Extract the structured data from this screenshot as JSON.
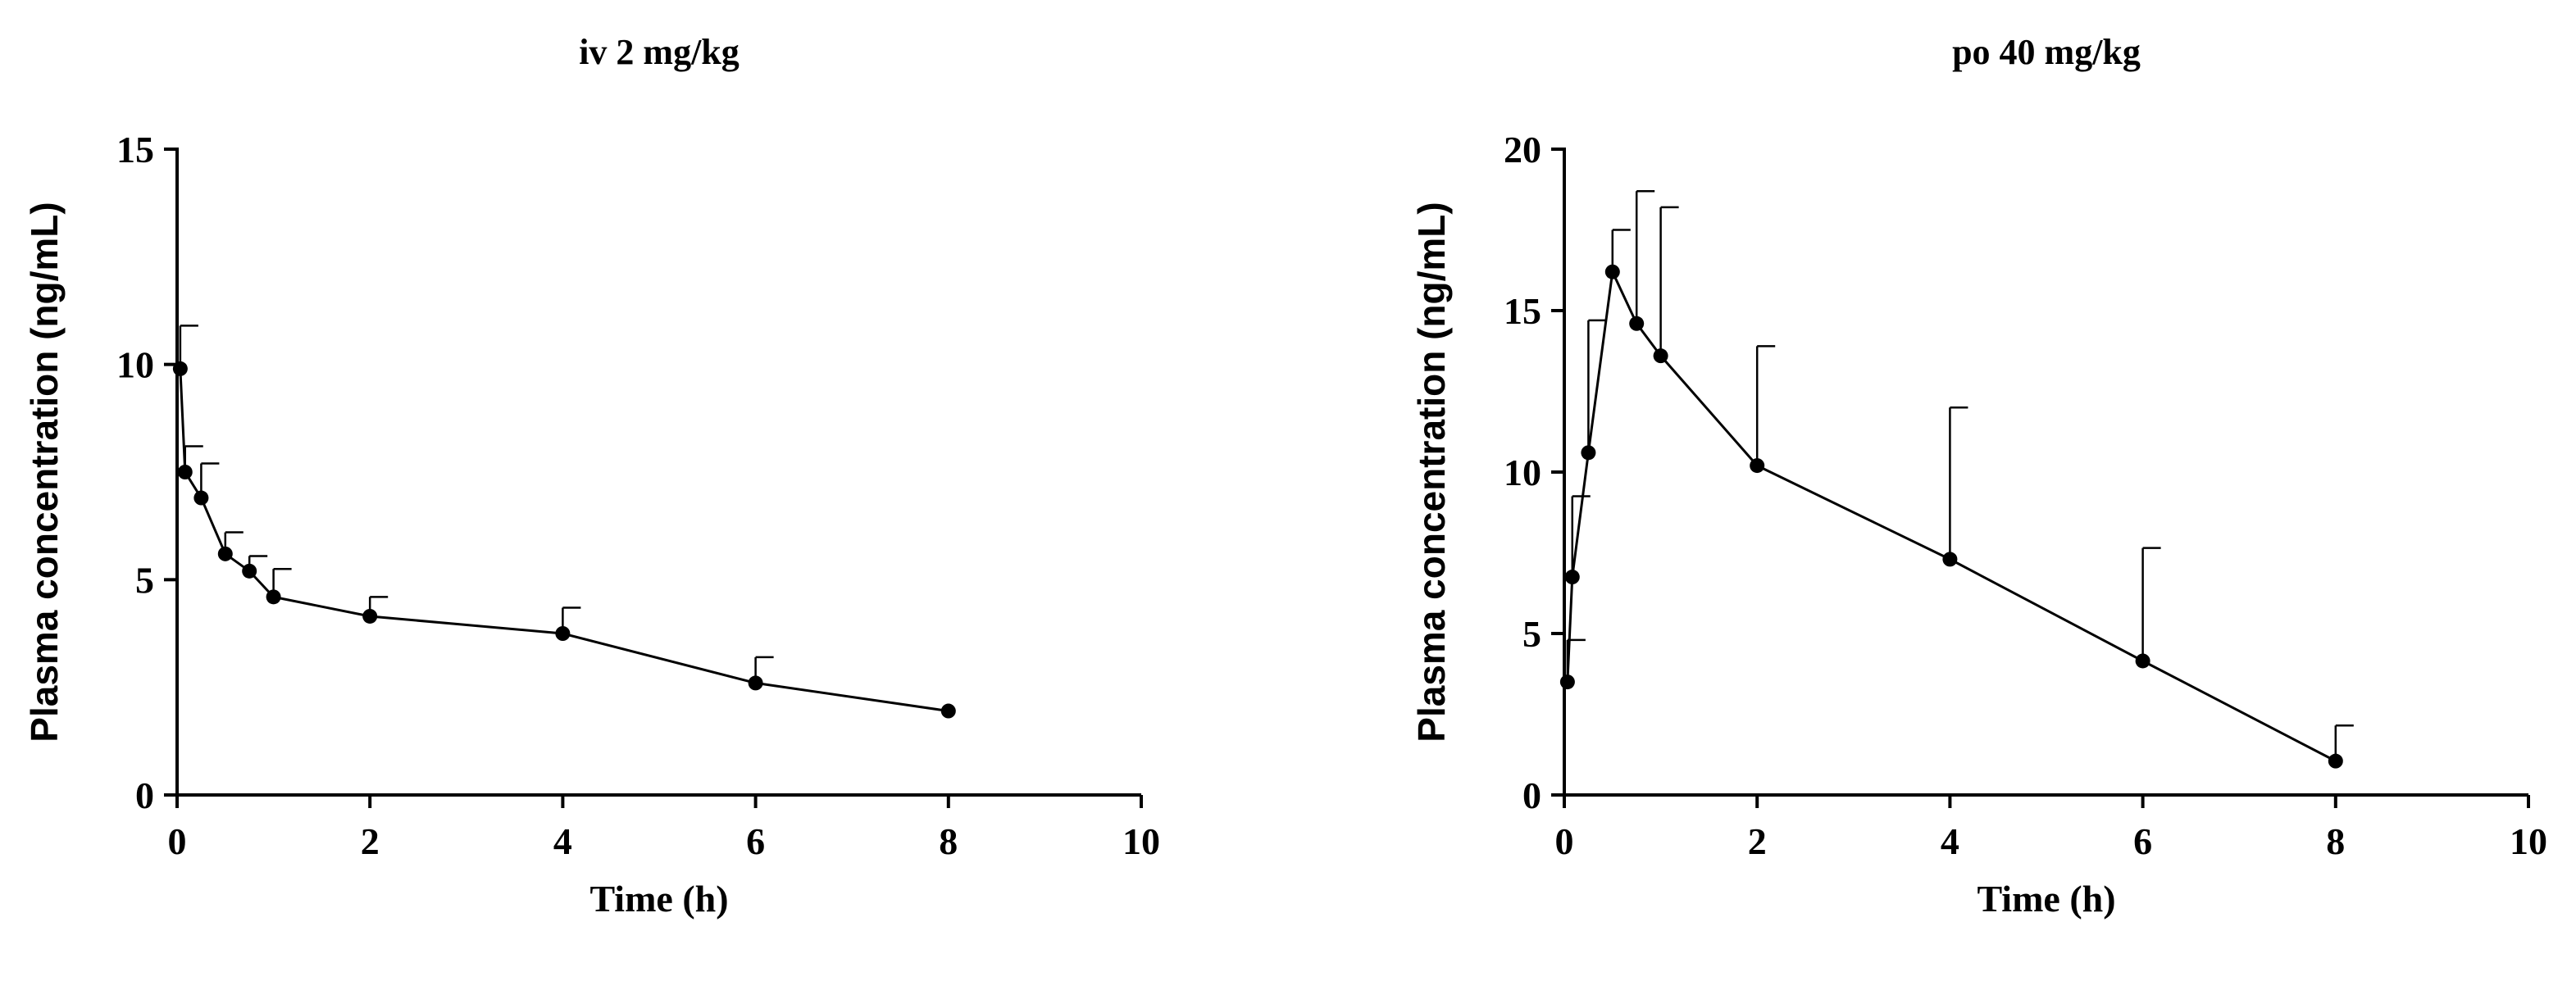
{
  "chart_data": [
    {
      "type": "line",
      "title": "iv 2 mg/kg",
      "xlabel": "Time (h)",
      "ylabel": "Plasma concentration (ng/mL)",
      "xlim": [
        0,
        10
      ],
      "ylim": [
        0,
        15
      ],
      "xticks": [
        0,
        2,
        4,
        6,
        8,
        10
      ],
      "yticks": [
        0,
        5,
        10,
        15
      ],
      "grid": false,
      "x": [
        0.033,
        0.083,
        0.25,
        0.5,
        0.75,
        1,
        2,
        4,
        6,
        8
      ],
      "y": [
        9.9,
        7.5,
        6.9,
        5.6,
        5.2,
        4.6,
        4.15,
        3.75,
        2.6,
        1.95
      ],
      "error_upper": [
        1.0,
        0.6,
        0.8,
        0.5,
        0.35,
        0.65,
        0.45,
        0.6,
        0.6,
        0.0
      ]
    },
    {
      "type": "line",
      "title": "po 40 mg/kg",
      "xlabel": "Time (h)",
      "ylabel": "Plasma concentration (ng/mL)",
      "xlim": [
        0,
        10
      ],
      "ylim": [
        0,
        20
      ],
      "xticks": [
        0,
        2,
        4,
        6,
        8,
        10
      ],
      "yticks": [
        0,
        5,
        10,
        15,
        20
      ],
      "grid": false,
      "x": [
        0.033,
        0.083,
        0.25,
        0.5,
        0.75,
        1,
        2,
        4,
        6,
        8
      ],
      "y": [
        3.5,
        6.75,
        10.6,
        16.2,
        14.6,
        13.6,
        10.2,
        7.3,
        4.15,
        1.05
      ],
      "error_upper": [
        1.3,
        2.5,
        4.1,
        1.3,
        4.1,
        4.6,
        3.7,
        4.7,
        3.5,
        1.1
      ]
    }
  ]
}
